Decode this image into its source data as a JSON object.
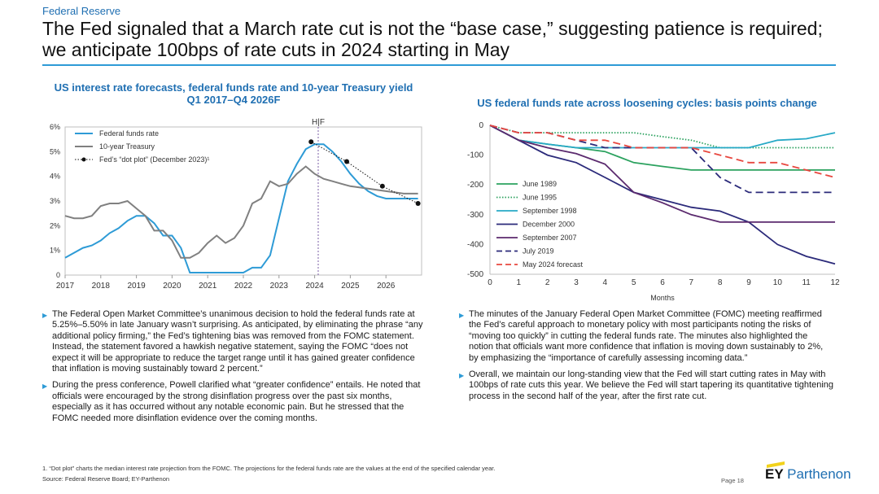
{
  "header": {
    "section": "Federal Reserve",
    "title": "The Fed signaled that a March rate cut is not the “base case,” suggesting patience is required; we anticipate 100bps of rate cuts in 2024 starting in May"
  },
  "chart_data": [
    {
      "type": "line",
      "title": "US interest rate forecasts, federal funds rate and 10-year Treasury yield",
      "subtitle": "Q1 2017–Q4 2026F",
      "hf_label": "H|F",
      "x_ticks": [
        "2017",
        "2018",
        "2019",
        "2020",
        "2021",
        "2022",
        "2023",
        "2024",
        "2025",
        "2026"
      ],
      "y_ticks": [
        "0",
        "1%",
        "2%",
        "3%",
        "4%",
        "5%",
        "6%"
      ],
      "ylim": [
        0,
        6
      ],
      "xlim": [
        2017,
        2027
      ],
      "hf_x": 2024.1,
      "legend_position": "top-left",
      "series": [
        {
          "name": "Federal funds rate",
          "color": "#2e9bd6",
          "style": "solid",
          "x": [
            2017.0,
            2017.5,
            2017.75,
            2018.0,
            2018.25,
            2018.5,
            2018.75,
            2019.0,
            2019.25,
            2019.5,
            2019.75,
            2020.0,
            2020.25,
            2020.5,
            2021.0,
            2021.5,
            2022.0,
            2022.25,
            2022.5,
            2022.75,
            2023.0,
            2023.25,
            2023.5,
            2023.75,
            2024.0,
            2024.25,
            2024.5,
            2024.75,
            2025.0,
            2025.25,
            2025.5,
            2025.75,
            2026.0,
            2026.5,
            2026.9
          ],
          "y": [
            0.7,
            1.1,
            1.2,
            1.4,
            1.7,
            1.9,
            2.2,
            2.4,
            2.4,
            2.1,
            1.6,
            1.6,
            1.1,
            0.1,
            0.1,
            0.1,
            0.1,
            0.3,
            0.3,
            0.8,
            2.3,
            3.8,
            4.5,
            5.1,
            5.3,
            5.3,
            5.0,
            4.6,
            4.1,
            3.7,
            3.4,
            3.2,
            3.1,
            3.1,
            3.1
          ]
        },
        {
          "name": "10-year Treasury",
          "color": "#808080",
          "style": "solid",
          "x": [
            2017.0,
            2017.25,
            2017.5,
            2017.75,
            2018.0,
            2018.25,
            2018.5,
            2018.75,
            2019.0,
            2019.25,
            2019.5,
            2019.75,
            2020.0,
            2020.25,
            2020.5,
            2020.75,
            2021.0,
            2021.25,
            2021.5,
            2021.75,
            2022.0,
            2022.25,
            2022.5,
            2022.75,
            2023.0,
            2023.25,
            2023.5,
            2023.75,
            2024.0,
            2024.25,
            2024.5,
            2024.75,
            2025.0,
            2025.5,
            2026.0,
            2026.5,
            2026.9
          ],
          "y": [
            2.4,
            2.3,
            2.3,
            2.4,
            2.8,
            2.9,
            2.9,
            3.0,
            2.7,
            2.4,
            1.8,
            1.8,
            1.4,
            0.7,
            0.7,
            0.9,
            1.3,
            1.6,
            1.3,
            1.5,
            2.0,
            2.9,
            3.1,
            3.8,
            3.6,
            3.7,
            4.1,
            4.4,
            4.1,
            3.9,
            3.8,
            3.7,
            3.6,
            3.5,
            3.4,
            3.3,
            3.3
          ]
        },
        {
          "name": "Fed’s “dot plot” (December 2023)¹",
          "color": "#111111",
          "style": "dotted-markers",
          "x": [
            2023.9,
            2024.9,
            2025.9,
            2026.9
          ],
          "y": [
            5.4,
            4.6,
            3.6,
            2.9
          ]
        }
      ]
    },
    {
      "type": "line",
      "title": "US federal funds rate across loosening cycles: basis points change",
      "xlabel": "Months",
      "x_ticks": [
        "0",
        "1",
        "2",
        "3",
        "4",
        "5",
        "6",
        "7",
        "8",
        "9",
        "10",
        "11",
        "12"
      ],
      "y_ticks": [
        "0",
        "-100",
        "-200",
        "-300",
        "-400",
        "-500"
      ],
      "ylim": [
        -500,
        0
      ],
      "xlim": [
        0,
        12
      ],
      "legend_position": "bottom-left",
      "series": [
        {
          "name": "June 1989",
          "color": "#2ca25f",
          "style": "solid",
          "x": [
            0,
            1,
            2,
            3,
            4,
            5,
            6,
            7,
            8,
            9,
            10,
            11,
            12
          ],
          "y": [
            0,
            -50,
            -63,
            -75,
            -88,
            -125,
            -138,
            -150,
            -150,
            -150,
            -150,
            -150,
            -150
          ]
        },
        {
          "name": "June 1995",
          "color": "#2ca25f",
          "style": "dotted",
          "x": [
            0,
            1,
            2,
            3,
            4,
            5,
            6,
            7,
            8,
            9,
            10,
            11,
            12
          ],
          "y": [
            0,
            -25,
            -25,
            -25,
            -25,
            -25,
            -38,
            -50,
            -75,
            -75,
            -75,
            -75,
            -75
          ]
        },
        {
          "name": "September 1998",
          "color": "#27a9c6",
          "style": "solid",
          "x": [
            0,
            1,
            2,
            3,
            4,
            5,
            6,
            7,
            8,
            9,
            10,
            11,
            12
          ],
          "y": [
            0,
            -50,
            -63,
            -75,
            -75,
            -75,
            -75,
            -75,
            -75,
            -75,
            -50,
            -45,
            -25
          ]
        },
        {
          "name": "December 2000",
          "color": "#2b2a7a",
          "style": "solid",
          "x": [
            0,
            1,
            2,
            3,
            4,
            5,
            6,
            7,
            8,
            9,
            10,
            11,
            12
          ],
          "y": [
            0,
            -50,
            -100,
            -125,
            -175,
            -225,
            -250,
            -275,
            -288,
            -325,
            -400,
            -440,
            -465
          ]
        },
        {
          "name": "September 2007",
          "color": "#5b2a6e",
          "style": "solid",
          "x": [
            0,
            1,
            2,
            3,
            4,
            5,
            6,
            7,
            8,
            9,
            10,
            11,
            12
          ],
          "y": [
            0,
            -50,
            -75,
            -95,
            -130,
            -225,
            -260,
            -300,
            -325,
            -325,
            -325,
            -325,
            -325
          ]
        },
        {
          "name": "July 2019",
          "color": "#2b2a7a",
          "style": "dashed",
          "x": [
            0,
            1,
            2,
            3,
            4,
            5,
            6,
            7,
            8,
            9,
            10,
            11,
            12
          ],
          "y": [
            0,
            -25,
            -25,
            -50,
            -75,
            -75,
            -75,
            -75,
            -175,
            -225,
            -225,
            -225,
            -225
          ]
        },
        {
          "name": "May 2024 forecast",
          "color": "#e8473f",
          "style": "dashed",
          "x": [
            0,
            1,
            2,
            3,
            4,
            5,
            6,
            7,
            8,
            9,
            10,
            11,
            12
          ],
          "y": [
            0,
            -25,
            -25,
            -50,
            -50,
            -75,
            -75,
            -75,
            -100,
            -125,
            -125,
            -150,
            -175
          ]
        }
      ]
    }
  ],
  "left_bullets": [
    "The Federal Open Market Committee’s unanimous decision to hold the federal funds rate at 5.25%–5.50% in late January wasn’t surprising. As anticipated, by eliminating the phrase “any additional policy firming,” the Fed’s tightening bias was removed from the FOMC statement. Instead, the statement favored a hawkish negative statement, saying the FOMC “does not expect it will be appropriate to reduce the target range until it has gained greater confidence that inflation is moving sustainably toward 2 percent.”",
    "During the press conference, Powell clarified what “greater confidence” entails. He noted that officials were encouraged by the strong disinflation progress over the past six months, especially as it has occurred without any notable economic pain. But he stressed that the FOMC needed more disinflation evidence over the coming months."
  ],
  "right_bullets": [
    "The minutes of the January Federal Open Market Committee (FOMC) meeting reaffirmed the Fed’s careful approach to monetary policy with most participants noting the risks of “moving too quickly” in cutting the federal funds rate. The minutes also highlighted the notion that officials want more confidence that inflation is moving down sustainably to 2%, by emphasizing the “importance of carefully assessing incoming data.”",
    "Overall, we maintain our long-standing view that the Fed will start cutting rates in May with 100bps of rate cuts this year. We believe the Fed will start tapering its quantitative tightening process in the second half of the year, after the first rate cut."
  ],
  "footer": {
    "footnote": "1.   “Dot plot” charts the median interest rate projection from the FOMC. The projections for the federal funds rate are the values at the end of the specified calendar year.",
    "source": "Source: Federal Reserve Board; EY-Parthenon",
    "page": "Page 18",
    "brand_ey": "EY",
    "brand_name": "Parthenon"
  },
  "bullet_glyph": "▶"
}
